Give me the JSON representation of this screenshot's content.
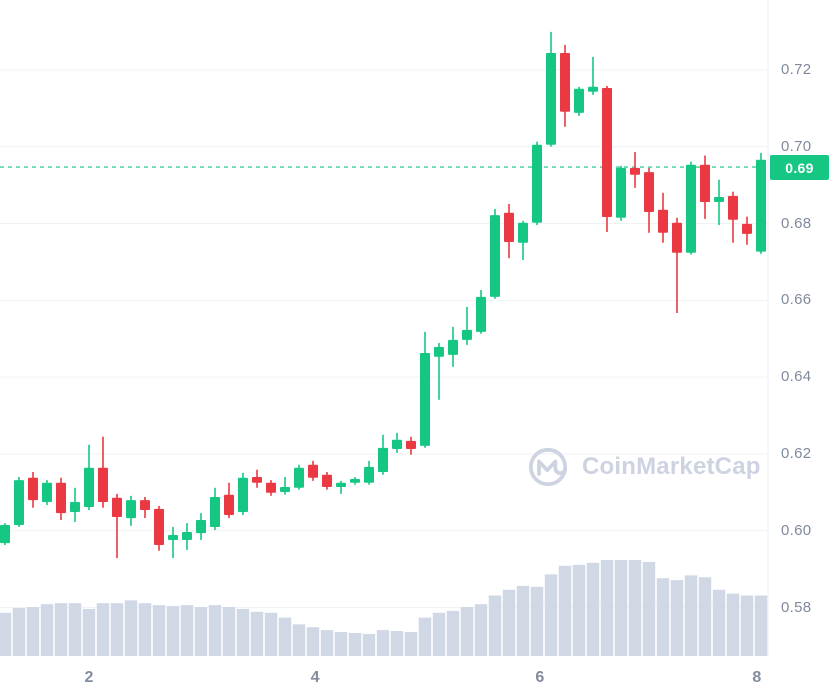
{
  "watermark": {
    "brand": "CoinMarketCap"
  },
  "current_price": {
    "label": "0.69",
    "value": 0.6947
  },
  "colors": {
    "background": "#FFFFFF",
    "up": "#16C784",
    "down": "#EA3943",
    "volume_bar": "#D0D7E5",
    "gridline": "#EFF2F5",
    "axis_line": "#ECEFF4",
    "axis_label": "#808A9D",
    "price_line": "#16C784",
    "badge_bg": "#16C784",
    "badge_text": "#FFFFFF",
    "watermark": "#CDD3E1"
  },
  "chart_data": {
    "type": "candlestick",
    "title": "",
    "xlabel": "",
    "ylabel": "",
    "grid": true,
    "legend": false,
    "y_axis_side": "right",
    "y_ticks": [
      {
        "label": "0.72",
        "value": 0.72
      },
      {
        "label": "0.70",
        "value": 0.7
      },
      {
        "label": "0.68",
        "value": 0.68
      },
      {
        "label": "0.66",
        "value": 0.66
      },
      {
        "label": "0.64",
        "value": 0.64
      },
      {
        "label": "0.62",
        "value": 0.62
      },
      {
        "label": "0.60",
        "value": 0.6
      },
      {
        "label": "0.58",
        "value": 0.58
      }
    ],
    "x_ticks": [
      {
        "label": "2",
        "index": 6.0
      },
      {
        "label": "4",
        "index": 22.15
      },
      {
        "label": "6",
        "index": 38.2
      },
      {
        "label": "8",
        "index": 53.7
      }
    ],
    "price_range_shown": [
      0.5674,
      0.7382
    ],
    "columns": [
      "open",
      "high",
      "low",
      "close",
      "volume_rel"
    ],
    "candles": [
      [
        0.5968,
        0.602,
        0.5963,
        0.6015,
        0.45
      ],
      [
        0.6015,
        0.614,
        0.601,
        0.6132,
        0.5
      ],
      [
        0.6138,
        0.6153,
        0.606,
        0.608,
        0.51
      ],
      [
        0.6075,
        0.6132,
        0.6067,
        0.6125,
        0.54
      ],
      [
        0.6125,
        0.6138,
        0.6028,
        0.6046,
        0.55
      ],
      [
        0.6049,
        0.6112,
        0.6023,
        0.6075,
        0.55
      ],
      [
        0.6062,
        0.6224,
        0.6054,
        0.6164,
        0.49
      ],
      [
        0.6164,
        0.6245,
        0.606,
        0.6075,
        0.55
      ],
      [
        0.6086,
        0.6096,
        0.5929,
        0.6036,
        0.55
      ],
      [
        0.6033,
        0.6091,
        0.6013,
        0.608,
        0.58
      ],
      [
        0.608,
        0.6088,
        0.6033,
        0.6054,
        0.55
      ],
      [
        0.6057,
        0.6065,
        0.5948,
        0.5963,
        0.53
      ],
      [
        0.5976,
        0.601,
        0.5929,
        0.5989,
        0.52
      ],
      [
        0.5976,
        0.602,
        0.595,
        0.5997,
        0.53
      ],
      [
        0.5994,
        0.6046,
        0.5976,
        0.6028,
        0.51
      ],
      [
        0.601,
        0.6112,
        0.6002,
        0.6088,
        0.53
      ],
      [
        0.6094,
        0.6125,
        0.6033,
        0.6041,
        0.51
      ],
      [
        0.6049,
        0.6151,
        0.6041,
        0.6138,
        0.49
      ],
      [
        0.614,
        0.6159,
        0.6112,
        0.6125,
        0.46
      ],
      [
        0.6125,
        0.6132,
        0.6091,
        0.6099,
        0.45
      ],
      [
        0.6101,
        0.614,
        0.6094,
        0.6114,
        0.4
      ],
      [
        0.6112,
        0.6172,
        0.6107,
        0.6164,
        0.33
      ],
      [
        0.6172,
        0.6182,
        0.613,
        0.6138,
        0.3
      ],
      [
        0.6146,
        0.6153,
        0.6107,
        0.6114,
        0.27
      ],
      [
        0.6114,
        0.613,
        0.6096,
        0.6125,
        0.25
      ],
      [
        0.6125,
        0.614,
        0.612,
        0.6135,
        0.24
      ],
      [
        0.6125,
        0.6182,
        0.612,
        0.6166,
        0.23
      ],
      [
        0.6153,
        0.625,
        0.6146,
        0.6216,
        0.27
      ],
      [
        0.6213,
        0.6255,
        0.6203,
        0.6237,
        0.26
      ],
      [
        0.6234,
        0.6245,
        0.6198,
        0.6213,
        0.25
      ],
      [
        0.6221,
        0.6518,
        0.6216,
        0.6463,
        0.4
      ],
      [
        0.6453,
        0.6489,
        0.6341,
        0.6479,
        0.45
      ],
      [
        0.6458,
        0.6531,
        0.6427,
        0.6497,
        0.47
      ],
      [
        0.6497,
        0.6583,
        0.6484,
        0.6523,
        0.51
      ],
      [
        0.6518,
        0.6627,
        0.6513,
        0.6609,
        0.54
      ],
      [
        0.6609,
        0.6838,
        0.6604,
        0.6822,
        0.63
      ],
      [
        0.6828,
        0.6851,
        0.671,
        0.6752,
        0.69
      ],
      [
        0.675,
        0.6807,
        0.6705,
        0.6802,
        0.73
      ],
      [
        0.6802,
        0.7013,
        0.6796,
        0.7005,
        0.72
      ],
      [
        0.7005,
        0.7299,
        0.7,
        0.7244,
        0.85
      ],
      [
        0.7244,
        0.7265,
        0.7052,
        0.7091,
        0.94
      ],
      [
        0.7088,
        0.7156,
        0.708,
        0.7151,
        0.95
      ],
      [
        0.7143,
        0.7234,
        0.7135,
        0.7156,
        0.97
      ],
      [
        0.7153,
        0.7158,
        0.6778,
        0.6817,
        1.0
      ],
      [
        0.6815,
        0.695,
        0.6807,
        0.6945,
        1.0
      ],
      [
        0.6945,
        0.6986,
        0.6893,
        0.6927,
        1.0
      ],
      [
        0.6934,
        0.6945,
        0.6776,
        0.683,
        0.98
      ],
      [
        0.6836,
        0.688,
        0.675,
        0.6776,
        0.81
      ],
      [
        0.6802,
        0.6815,
        0.6567,
        0.6724,
        0.79
      ],
      [
        0.6724,
        0.6961,
        0.6719,
        0.6953,
        0.84
      ],
      [
        0.6953,
        0.6977,
        0.6812,
        0.6856,
        0.82
      ],
      [
        0.6856,
        0.6914,
        0.6796,
        0.6869,
        0.69
      ],
      [
        0.6872,
        0.6883,
        0.675,
        0.681,
        0.65
      ],
      [
        0.6799,
        0.6818,
        0.6745,
        0.6773,
        0.63
      ],
      [
        0.6727,
        0.6984,
        0.6721,
        0.6966,
        0.63
      ]
    ]
  }
}
